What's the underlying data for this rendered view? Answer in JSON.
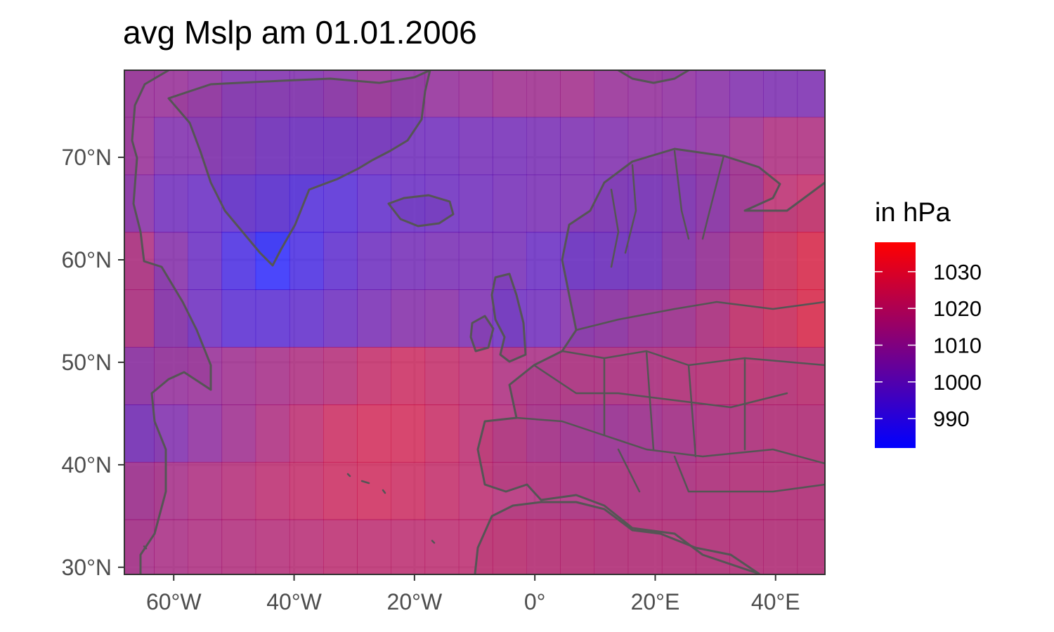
{
  "chart_data": {
    "type": "heatmap",
    "title": "avg Mslp am 01.01.2006",
    "xlabel": "",
    "ylabel": "",
    "x_ticks": [
      {
        "value": -60,
        "label": "60°W"
      },
      {
        "value": -40,
        "label": "40°W"
      },
      {
        "value": -20,
        "label": "20°W"
      },
      {
        "value": 0,
        "label": "0°"
      },
      {
        "value": 20,
        "label": "20°E"
      },
      {
        "value": 40,
        "label": "40°E"
      }
    ],
    "y_ticks": [
      {
        "value": 30,
        "label": "30°N"
      },
      {
        "value": 40,
        "label": "40°N"
      },
      {
        "value": 50,
        "label": "50°N"
      },
      {
        "value": 60,
        "label": "60°N"
      },
      {
        "value": 70,
        "label": "70°N"
      }
    ],
    "xlim": [
      -68.2,
      48.2
    ],
    "ylim": [
      29.3,
      78.5
    ],
    "grid": true,
    "legend": {
      "title": "in hPa",
      "position": "right",
      "color_low": "#0000FF",
      "color_high": "#FF0000",
      "range": [
        982,
        1038
      ],
      "ticks": [
        990,
        1000,
        1010,
        1020,
        1030
      ]
    },
    "grid_lons": [
      -66.09,
      -60.47,
      -54.84,
      -49.22,
      -43.59,
      -37.97,
      -32.34,
      -26.72,
      -21.09,
      -15.47,
      -9.84,
      -4.22,
      1.41,
      7.03,
      12.66,
      18.28,
      23.91,
      29.53,
      35.16,
      40.78,
      46.41
    ],
    "grid_lats": [
      76.74,
      71.12,
      65.51,
      59.9,
      54.29,
      48.68,
      43.07,
      37.46,
      31.86
    ],
    "values": [
      [
        1010,
        1010,
        1008,
        1004,
        1004,
        1004,
        1006,
        1010,
        1008,
        1009,
        1010,
        1012,
        1012,
        1013,
        1010,
        1009,
        1008,
        1006,
        1004,
        1003,
        1003
      ],
      [
        1010,
        1004,
        1004,
        1002,
        1000,
        999,
        999,
        1000,
        1000,
        1000,
        1001,
        1001,
        1002,
        1003,
        1004,
        1005,
        1006,
        1008,
        1012,
        1016,
        1016
      ],
      [
        1006,
        1000,
        998,
        996,
        994,
        992,
        993,
        996,
        998,
        999,
        1000,
        1001,
        1002,
        1003,
        1002,
        1001,
        1003,
        1006,
        1012,
        1020,
        1022
      ],
      [
        1016,
        1005,
        998,
        990,
        983,
        990,
        995,
        999,
        1001,
        1002,
        1002,
        1001,
        998,
        998,
        999,
        1000,
        1005,
        1010,
        1016,
        1025,
        1029
      ],
      [
        1016,
        1005,
        999,
        994,
        994,
        996,
        999,
        1002,
        1005,
        1006,
        1003,
        999,
        1000,
        1005,
        1007,
        1010,
        1012,
        1016,
        1022,
        1025,
        1029
      ],
      [
        1007,
        1009,
        1010,
        1012,
        1014,
        1016,
        1018,
        1022,
        1024,
        1022,
        1020,
        1016,
        1015,
        1016,
        1016,
        1016,
        1018,
        1019,
        1020,
        1019,
        1020
      ],
      [
        1001,
        1004,
        1008,
        1012,
        1016,
        1020,
        1024,
        1026,
        1026,
        1023,
        1020,
        1017,
        1014,
        1012,
        1011,
        1012,
        1014,
        1016,
        1017,
        1018,
        1018
      ],
      [
        1012,
        1014,
        1016,
        1018,
        1020,
        1022,
        1024,
        1025,
        1024,
        1022,
        1020,
        1018,
        1017,
        1016,
        1016,
        1016,
        1016,
        1017,
        1018,
        1018,
        1018
      ],
      [
        1014,
        1015,
        1016,
        1017,
        1018,
        1019,
        1020,
        1020,
        1020,
        1020,
        1020,
        1020,
        1019,
        1019,
        1018,
        1018,
        1018,
        1018,
        1018,
        1018,
        1018
      ]
    ]
  }
}
